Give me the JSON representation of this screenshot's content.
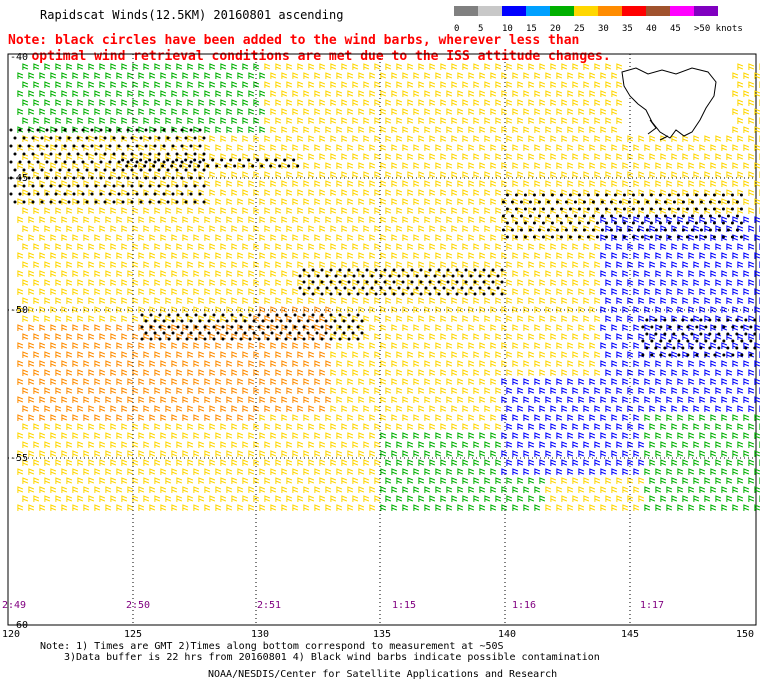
{
  "header": {
    "title": "Rapidscat Winds(12.5KM) 20160801 ascending",
    "note_line1": "Note: black circles have been added to the wind barbs, wherever less than",
    "note_line2": "optimal wind retrieval conditions are met due to the ISS attitude changes."
  },
  "legend": {
    "labels": [
      "0",
      "5",
      "10",
      "15",
      "20",
      "25",
      "30",
      "35",
      "40",
      "45",
      ">50 knots"
    ],
    "colors": [
      "#808080",
      "#c8c8c8",
      "#0000ff",
      "#00a0ff",
      "#00b000",
      "#ffd700",
      "#ff8c00",
      "#ff0000",
      "#a0522d",
      "#ff00ff",
      "#8000c0"
    ]
  },
  "map": {
    "lon_labels": [
      "120",
      "125",
      "130",
      "135",
      "140",
      "145",
      "150"
    ],
    "lat_labels": [
      "-40",
      "-45",
      "-50",
      "-55",
      "-60"
    ],
    "time_labels": [
      "2:49",
      "2:50",
      "2:51",
      "1:15",
      "1:16",
      "1:17"
    ]
  },
  "footer": {
    "line1": "Note: 1) Times are GMT 2)Times along bottom correspond to measurement at ~50S",
    "line2": "3)Data buffer is 22 hrs from 20160801 4) Black wind barbs indicate possible contamination",
    "line3": "NOAA/NESDIS/Center for Satellite Applications and Research"
  }
}
